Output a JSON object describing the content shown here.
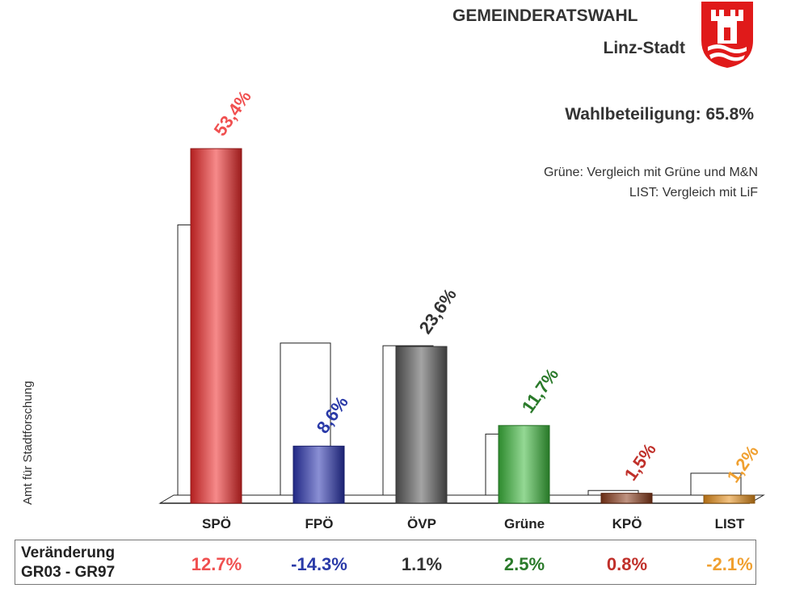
{
  "header": {
    "title": "GEMEINDERATSWAHL",
    "subtitle": "Linz-Stadt",
    "turnout": "Wahlbeteiligung: 65.8%",
    "note1": "Grüne: Vergleich  mit Grüne und M&N",
    "note2": "LIST: Vergleich mit LiF"
  },
  "credit": "Amt für Stadtforschung",
  "change_box": {
    "label_line1": "Veränderung",
    "label_line2": "GR03 - GR97"
  },
  "chart_data": {
    "type": "bar",
    "categories": [
      "SPÖ",
      "FPÖ",
      "ÖVP",
      "Grüne",
      "KPÖ",
      "LIST"
    ],
    "series": [
      {
        "values": [
          40.7,
          22.9,
          22.5,
          9.2,
          0.7,
          3.3
        ]
      },
      {
        "values": [
          53.4,
          8.6,
          23.6,
          11.7,
          1.5,
          1.2
        ]
      }
    ],
    "value_labels": [
      "53,4%",
      "8,6%",
      "23,6%",
      "11,7%",
      "1,5%",
      "1,2%"
    ],
    "changes": [
      "12.7%",
      "-14.3%",
      "1.1%",
      "2.5%",
      "0.8%",
      "-2.1%"
    ],
    "colors": [
      "#ee2a2a",
      "#2a34b0",
      "#5a5a5a",
      "#3cb83c",
      "#8b3b1a",
      "#e8901a"
    ],
    "label_colors": [
      "#f05050",
      "#2a3aa8",
      "#333333",
      "#2a7a2a",
      "#c0302a",
      "#f0a030"
    ],
    "ylim": [
      0,
      60
    ],
    "grid": false,
    "legend": "none"
  }
}
